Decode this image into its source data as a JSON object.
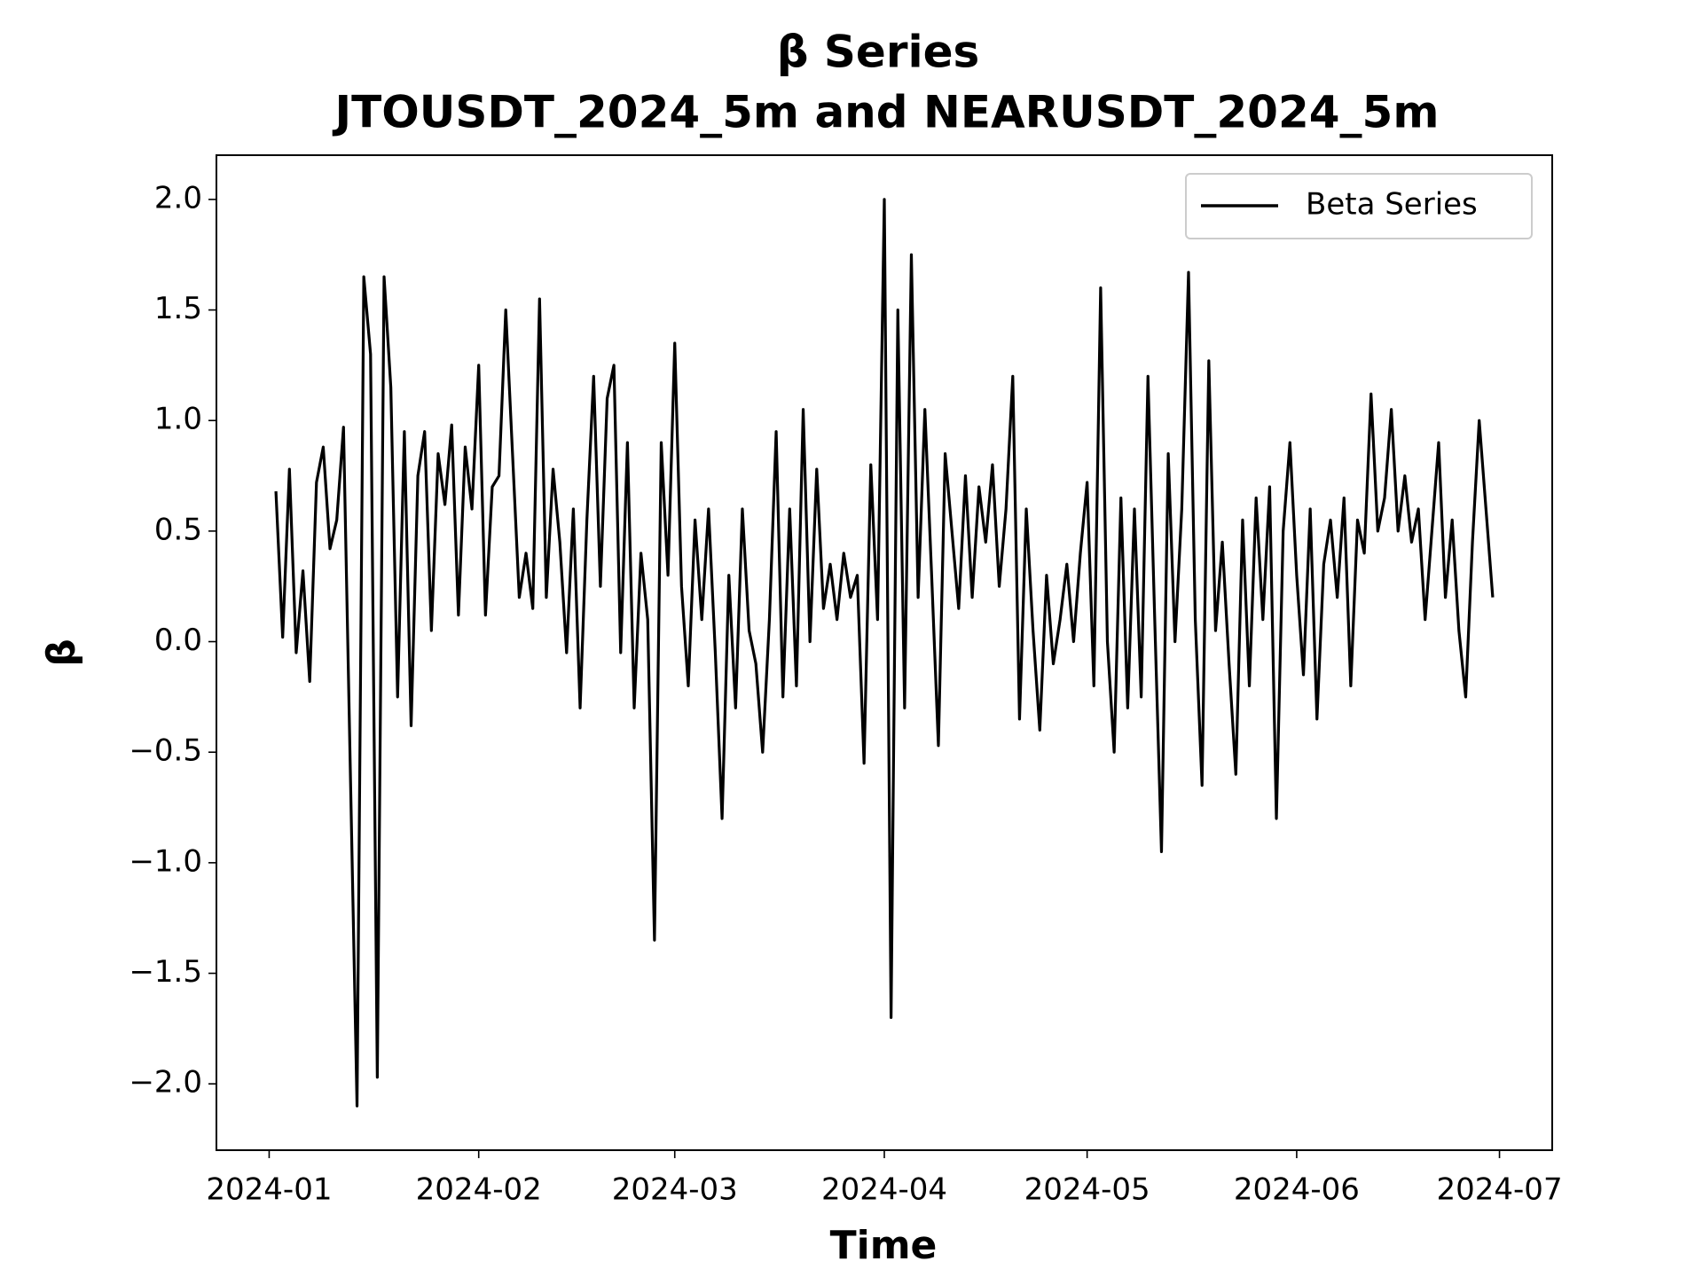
{
  "chart_data": {
    "type": "line",
    "title": "β Series",
    "subtitle": "JTOUSDT_2024_5m and NEARUSDT_2024_5m",
    "xlabel": "Time",
    "ylabel": "β",
    "legend": "upper right",
    "grid": false,
    "xlim": [
      -7.8,
      189.8
    ],
    "ylim": [
      -2.3,
      2.2
    ],
    "xticks": [
      {
        "value": 0,
        "label": "2024-01"
      },
      {
        "value": 31,
        "label": "2024-02"
      },
      {
        "value": 60,
        "label": "2024-03"
      },
      {
        "value": 91,
        "label": "2024-04"
      },
      {
        "value": 121,
        "label": "2024-05"
      },
      {
        "value": 152,
        "label": "2024-06"
      },
      {
        "value": 182,
        "label": "2024-07"
      }
    ],
    "yticks": [
      {
        "value": -2.0,
        "label": "−2.0"
      },
      {
        "value": -1.5,
        "label": "−1.5"
      },
      {
        "value": -1.0,
        "label": "−1.0"
      },
      {
        "value": -0.5,
        "label": "−0.5"
      },
      {
        "value": 0,
        "label": "0.0"
      },
      {
        "value": 0.5,
        "label": "0.5"
      },
      {
        "value": 1.0,
        "label": "1.0"
      },
      {
        "value": 1.5,
        "label": "1.5"
      },
      {
        "value": 2.0,
        "label": "2.0"
      }
    ],
    "x": [
      1,
      2,
      3,
      4,
      5,
      6,
      7,
      8,
      9,
      10,
      11,
      12,
      13,
      14,
      15,
      16,
      17,
      18,
      19,
      20,
      21,
      22,
      23,
      24,
      25,
      26,
      27,
      28,
      29,
      30,
      31,
      32,
      33,
      34,
      35,
      36,
      37,
      38,
      39,
      40,
      41,
      42,
      43,
      44,
      45,
      46,
      47,
      48,
      49,
      50,
      51,
      52,
      53,
      54,
      55,
      56,
      57,
      58,
      59,
      60,
      61,
      62,
      63,
      64,
      65,
      66,
      67,
      68,
      69,
      70,
      71,
      72,
      73,
      74,
      75,
      76,
      77,
      78,
      79,
      80,
      81,
      82,
      83,
      84,
      85,
      86,
      87,
      88,
      89,
      90,
      91,
      92,
      93,
      94,
      95,
      96,
      97,
      98,
      99,
      100,
      101,
      102,
      103,
      104,
      105,
      106,
      107,
      108,
      109,
      110,
      111,
      112,
      113,
      114,
      115,
      116,
      117,
      118,
      119,
      120,
      121,
      122,
      123,
      124,
      125,
      126,
      127,
      128,
      129,
      130,
      131,
      132,
      133,
      134,
      135,
      136,
      137,
      138,
      139,
      140,
      141,
      142,
      143,
      144,
      145,
      146,
      147,
      148,
      149,
      150,
      151,
      152,
      153,
      154,
      155,
      156,
      157,
      158,
      159,
      160,
      161,
      162,
      163,
      164,
      165,
      166,
      167,
      168,
      169,
      170,
      171,
      172,
      173,
      174,
      175,
      176,
      177,
      178,
      179,
      180,
      181
    ],
    "series": [
      {
        "name": "Beta Series",
        "color": "#000000",
        "values": [
          0.68,
          0.02,
          0.78,
          -0.05,
          0.32,
          -0.18,
          0.72,
          0.88,
          0.42,
          0.55,
          0.97,
          -0.57,
          -2.1,
          1.65,
          1.3,
          -1.97,
          1.65,
          1.15,
          -0.25,
          0.95,
          -0.38,
          0.75,
          0.95,
          0.05,
          0.85,
          0.62,
          0.98,
          0.12,
          0.88,
          0.6,
          1.25,
          0.12,
          0.7,
          0.75,
          1.5,
          0.85,
          0.2,
          0.4,
          0.15,
          1.55,
          0.2,
          0.78,
          0.45,
          -0.05,
          0.6,
          -0.3,
          0.55,
          1.2,
          0.25,
          1.1,
          1.25,
          -0.05,
          0.9,
          -0.3,
          0.4,
          0.1,
          -1.35,
          0.9,
          0.3,
          1.35,
          0.25,
          -0.2,
          0.55,
          0.1,
          0.6,
          -0.05,
          -0.8,
          0.3,
          -0.3,
          0.6,
          0.05,
          -0.1,
          -0.5,
          0.1,
          0.95,
          -0.25,
          0.6,
          -0.2,
          1.05,
          0.0,
          0.78,
          0.15,
          0.35,
          0.1,
          0.4,
          0.2,
          0.3,
          -0.55,
          0.8,
          0.1,
          2.0,
          -1.7,
          1.5,
          -0.3,
          1.75,
          0.2,
          1.05,
          0.3,
          -0.47,
          0.85,
          0.5,
          0.15,
          0.75,
          0.2,
          0.7,
          0.45,
          0.8,
          0.25,
          0.6,
          1.2,
          -0.35,
          0.6,
          0.05,
          -0.4,
          0.3,
          -0.1,
          0.1,
          0.35,
          0.0,
          0.4,
          0.72,
          -0.2,
          1.6,
          0.0,
          -0.5,
          0.65,
          -0.3,
          0.6,
          -0.25,
          1.2,
          0.1,
          -0.95,
          0.85,
          0.0,
          0.6,
          1.67,
          0.1,
          -0.65,
          1.27,
          0.05,
          0.45,
          -0.1,
          -0.6,
          0.55,
          -0.2,
          0.65,
          0.1,
          0.7,
          -0.8,
          0.5,
          0.9,
          0.3,
          -0.15,
          0.6,
          -0.35,
          0.35,
          0.55,
          0.2,
          0.65,
          -0.2,
          0.55,
          0.4,
          1.12,
          0.5,
          0.65,
          1.05,
          0.5,
          0.75,
          0.45,
          0.6,
          0.1,
          0.5,
          0.9,
          0.2,
          0.55,
          0.05,
          -0.25,
          0.45,
          1.0,
          0.6,
          0.2
        ]
      }
    ]
  }
}
